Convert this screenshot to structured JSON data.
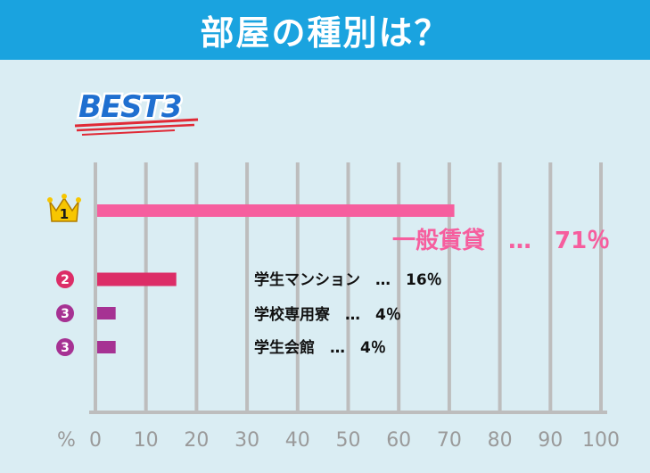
{
  "header": {
    "title": "部屋の種別は？"
  },
  "badge": {
    "text": "BEST3"
  },
  "colors": {
    "header_bg": "#1aa3df",
    "background": "#daedf3",
    "badge_blue": "#1f6fd0",
    "underline_red": "#e02a36",
    "rank1": "#f65e9e",
    "rank2": "#dc2d67",
    "rank3": "#a63293",
    "crown": "#f7c600",
    "grid": "#bdbdbd",
    "axis_text": "#9a9a9a"
  },
  "chart_data": {
    "type": "bar",
    "orientation": "horizontal",
    "xlim": [
      0,
      100
    ],
    "xunit": "%",
    "ticks": [
      "0",
      "10",
      "20",
      "30",
      "40",
      "50",
      "60",
      "70",
      "80",
      "90",
      "100"
    ],
    "grid": true,
    "items": [
      {
        "rank": "1",
        "name": "一般賃貸",
        "value": 71,
        "label": "一般賃貸　…　71％"
      },
      {
        "rank": "2",
        "name": "学生マンション",
        "value": 16,
        "label": "学生マンション　…　16％"
      },
      {
        "rank": "3",
        "name": "学校専用寮",
        "value": 4,
        "label": "学校専用寮　…　4％"
      },
      {
        "rank": "3",
        "name": "学生会館",
        "value": 4,
        "label": "学生会館　…　4％"
      }
    ]
  }
}
